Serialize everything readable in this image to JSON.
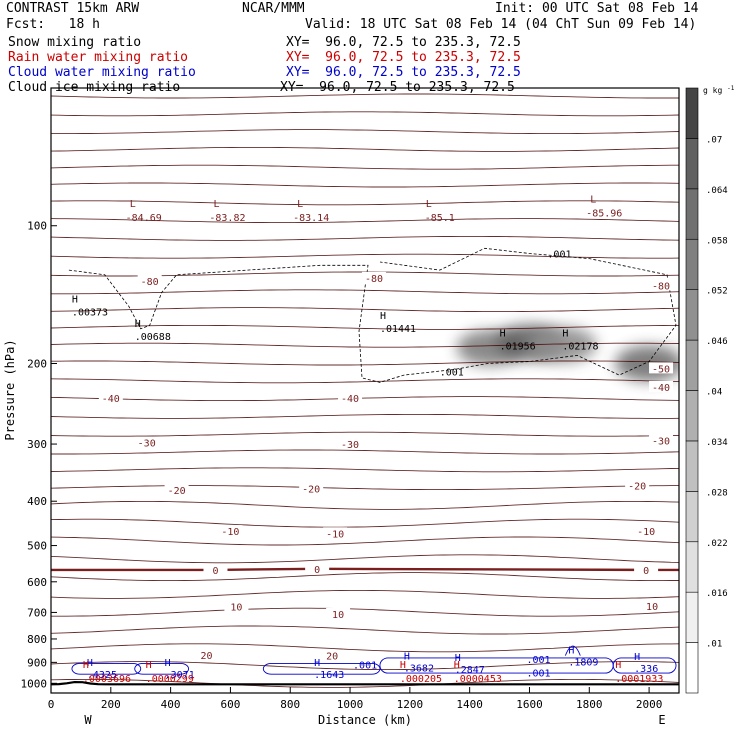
{
  "header": {
    "title": "CONTRAST 15km ARW",
    "forecast": "Fcst:   18 h",
    "center": "NCAR/MMM",
    "init": "Init: 00 UTC Sat 08 Feb 14",
    "valid": "Valid: 18 UTC Sat 08 Feb 14 (04 ChT Sun 09 Feb 14)"
  },
  "fields": [
    {
      "label": "Snow mixing ratio",
      "xy": "XY=  96.0, 72.5 to 235.3, 72.5",
      "color": "#000000"
    },
    {
      "label": "Rain water mixing ratio",
      "xy": "XY=  96.0, 72.5 to 235.3, 72.5",
      "color": "#cc0000"
    },
    {
      "label": "Cloud water mixing ratio",
      "xy": "XY=  96.0, 72.5 to 235.3, 72.5",
      "color": "#0000cc"
    },
    {
      "label": "Cloud ice mixing ratio",
      "xy": "XY=  96.0, 72.5 to 235.3, 72.5",
      "color": "#000000"
    }
  ],
  "colors": {
    "temperature": "#7a1e1e",
    "theta": "#4a0808",
    "rain": "#cc0000",
    "cloud_water": "#0000cc",
    "cloud_ice": "#000000"
  },
  "chart_data": {
    "type": "cross-section",
    "xlabel": "Distance (km)",
    "ylabel": "Pressure (hPa)",
    "xlim": [
      0,
      2100
    ],
    "ylim": [
      1050,
      50
    ],
    "yscale": "log",
    "x_ticks": [
      0,
      200,
      400,
      600,
      800,
      1000,
      1200,
      1400,
      1600,
      1800,
      2000
    ],
    "y_ticks": [
      100,
      200,
      300,
      400,
      500,
      600,
      700,
      800,
      900,
      1000
    ],
    "endpoints": {
      "left": "W",
      "right": "E"
    },
    "colorbar": {
      "unit": "g kg",
      "unit_exp": "-1",
      "levels": [
        ".01",
        ".016",
        ".022",
        ".028",
        ".034",
        ".04",
        ".046",
        ".052",
        ".058",
        ".064",
        ".07"
      ],
      "colors": [
        "#ffffff",
        "#f0f0f0",
        "#e0e0e0",
        "#d0d0d0",
        "#c0c0c0",
        "#b0b0b0",
        "#a0a0a0",
        "#909090",
        "#808080",
        "#707070",
        "#606060",
        "#454545"
      ]
    },
    "temperature_labels": [
      {
        "x": 330,
        "p": 132,
        "text": "-80"
      },
      {
        "x": 1080,
        "p": 130,
        "text": "-80"
      },
      {
        "x": 2040,
        "p": 135,
        "text": "-80"
      },
      {
        "x": 2040,
        "p": 205,
        "text": "-50"
      },
      {
        "x": 2040,
        "p": 225,
        "text": "-40"
      },
      {
        "x": 200,
        "p": 238,
        "text": "-40"
      },
      {
        "x": 1000,
        "p": 238,
        "text": "-40"
      },
      {
        "x": 320,
        "p": 298,
        "text": "-30"
      },
      {
        "x": 1000,
        "p": 300,
        "text": "-30"
      },
      {
        "x": 2040,
        "p": 295,
        "text": "-30"
      },
      {
        "x": 420,
        "p": 378,
        "text": "-20"
      },
      {
        "x": 870,
        "p": 375,
        "text": "-20"
      },
      {
        "x": 1960,
        "p": 370,
        "text": "-20"
      },
      {
        "x": 600,
        "p": 465,
        "text": "-10"
      },
      {
        "x": 950,
        "p": 470,
        "text": "-10"
      },
      {
        "x": 1990,
        "p": 465,
        "text": "-10"
      },
      {
        "x": 550,
        "p": 565,
        "text": "0"
      },
      {
        "x": 890,
        "p": 562,
        "text": "0"
      },
      {
        "x": 1990,
        "p": 565,
        "text": "0"
      },
      {
        "x": 620,
        "p": 680,
        "text": "10"
      },
      {
        "x": 960,
        "p": 705,
        "text": "10"
      },
      {
        "x": 2010,
        "p": 678,
        "text": "10"
      },
      {
        "x": 520,
        "p": 868,
        "text": "20"
      },
      {
        "x": 940,
        "p": 870,
        "text": "20"
      }
    ],
    "lows": [
      {
        "x": 310,
        "p": 90,
        "value": "-84.69"
      },
      {
        "x": 590,
        "p": 90,
        "value": "-83.82"
      },
      {
        "x": 870,
        "p": 90,
        "value": "-83.14"
      },
      {
        "x": 1300,
        "p": 90,
        "value": "-85.1"
      },
      {
        "x": 1850,
        "p": 88,
        "value": "-85.96"
      }
    ],
    "ice_highs": [
      {
        "x": 70,
        "p": 150,
        "value": ".00373"
      },
      {
        "x": 280,
        "p": 170,
        "value": ".00688"
      },
      {
        "x": 1100,
        "p": 163,
        "value": ".01441"
      },
      {
        "x": 1500,
        "p": 178,
        "value": ".01956"
      },
      {
        "x": 1710,
        "p": 178,
        "value": ".02178"
      }
    ],
    "ice_001_labels": [
      {
        "x": 1660,
        "p": 115,
        "text": ".001"
      },
      {
        "x": 1300,
        "p": 208,
        "text": ".001"
      }
    ],
    "cloud_water_highs": [
      {
        "x": 120,
        "p": 935,
        "value": ".4325"
      },
      {
        "x": 380,
        "p": 935,
        "value": ".3071"
      },
      {
        "x": 880,
        "p": 935,
        "value": ".1643"
      },
      {
        "x": 1180,
        "p": 905,
        "value": ".3682"
      },
      {
        "x": 1350,
        "p": 912,
        "value": ".2847"
      },
      {
        "x": 1730,
        "p": 878,
        "value": ".1809"
      },
      {
        "x": 1950,
        "p": 908,
        "value": ".336"
      }
    ],
    "cloud_water_001_labels": [
      {
        "x": 1010,
        "p": 910,
        "text": ".001"
      },
      {
        "x": 1590,
        "p": 885,
        "text": ".001"
      },
      {
        "x": 1590,
        "p": 948,
        "text": ".001"
      }
    ],
    "rain_highs": [
      {
        "x": 120,
        "p": 955,
        "value": ".0003696"
      },
      {
        "x": 330,
        "p": 955,
        "value": ".0000299"
      },
      {
        "x": 1180,
        "p": 955,
        "value": ".000205"
      },
      {
        "x": 1360,
        "p": 955,
        "value": ".0000453"
      },
      {
        "x": 1900,
        "p": 955,
        "value": ".0001933"
      }
    ],
    "ice_blobs": [
      {
        "x": 1470,
        "p": 185,
        "value": 0.052
      },
      {
        "x": 1600,
        "p": 180,
        "value": 0.064
      },
      {
        "x": 1710,
        "p": 182,
        "value": 0.046
      },
      {
        "x": 2000,
        "p": 200,
        "value": 0.058
      }
    ]
  }
}
